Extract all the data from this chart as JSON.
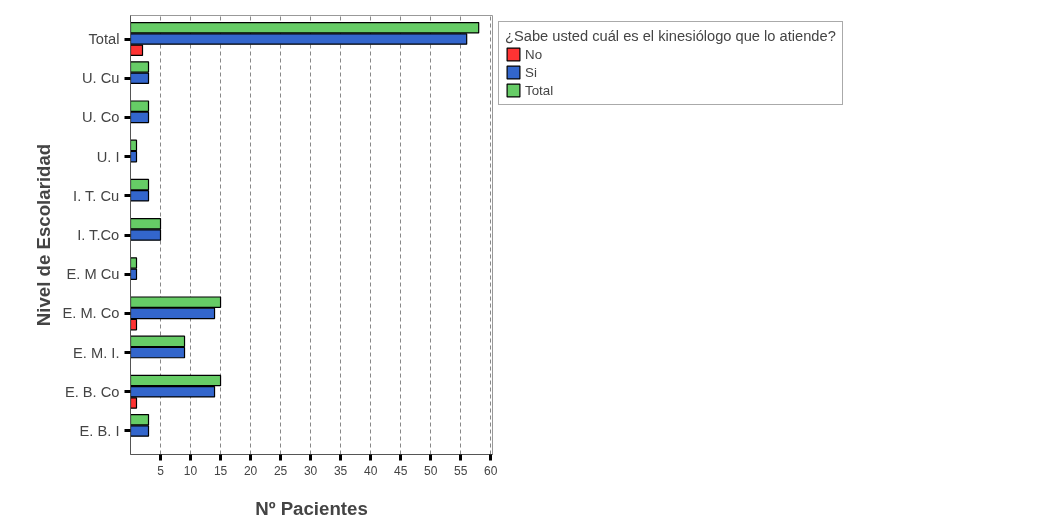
{
  "chart_data": {
    "type": "bar",
    "orientation": "horizontal",
    "categories": [
      "Total",
      "U. Cu",
      "U. Co",
      "U. I",
      "I. T. Cu",
      "I. T.Co",
      "E. M Cu",
      "E. M. Co",
      "E. M. I.",
      "E. B. Co",
      "E. B. I"
    ],
    "series": [
      {
        "name": "No",
        "color": "#ff3333",
        "values": [
          2,
          null,
          null,
          null,
          null,
          null,
          null,
          1,
          null,
          1,
          null
        ]
      },
      {
        "name": "Si",
        "color": "#3366cc",
        "values": [
          56,
          3,
          3,
          1,
          3,
          5,
          1,
          14,
          9,
          14,
          3
        ]
      },
      {
        "name": "Total",
        "color": "#66cc66",
        "values": [
          58,
          3,
          3,
          1,
          3,
          5,
          1,
          15,
          9,
          15,
          3
        ]
      }
    ],
    "xlabel": "Nº Pacientes",
    "ylabel": "Nivel de Escolaridad",
    "legend_title": "¿Sabe usted cuál es el kinesiólogo que lo atiende?",
    "xlim": [
      0,
      60.3
    ],
    "xticks": [
      5,
      10,
      15,
      20,
      25,
      30,
      35,
      40,
      45,
      50,
      55,
      60
    ],
    "grid": "x",
    "legend": "top right"
  }
}
